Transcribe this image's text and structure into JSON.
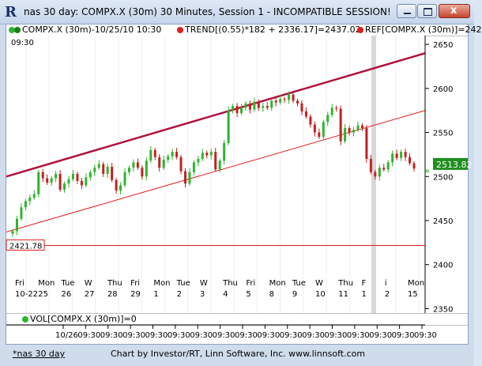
{
  "window": {
    "title": "nas 30 day: COMPX.X (30m) 30 Minutes, Session 1 - INCOMPATIBLE SESSION!",
    "app_icon_glyph": "R",
    "close_glyph": "x"
  },
  "legend": {
    "series": "COMPX.X (30m)-10/25/10 10:30",
    "trend": "TREND[(0.55)*182 + 2336.17]=2437.02",
    "ref": "REF[COMPX.X (30m)]=242",
    "time": "09:30",
    "colors": {
      "series_dot_a": "#2db52d",
      "series_dot_b": "#1a7d1a",
      "trend_dot": "#e11d1d",
      "ref_dot": "#e11d1d"
    }
  },
  "volume_legend": {
    "label": "VOL[COMPX.X (30m)]=0",
    "dot_color": "#2db52d"
  },
  "status": {
    "tab": "*nas 30 day",
    "credit": "Chart by Investor/RT, Linn Software, Inc. www.linnsoft.com"
  },
  "chart_data": {
    "type": "candlestick",
    "y_axis": {
      "ticks": [
        2650,
        2600,
        2550,
        2500,
        2450,
        2400,
        2350
      ],
      "range": [
        2345,
        2660
      ]
    },
    "last_price": "2513.82",
    "reference_line": {
      "label": "2421.78",
      "value": 2421.78
    },
    "day_labels": [
      {
        "dow": "Fri",
        "date": "10-22"
      },
      {
        "dow": "Mon",
        "date": "25"
      },
      {
        "dow": "Tue",
        "date": "26"
      },
      {
        "dow": "W",
        "date": "27"
      },
      {
        "dow": "Thu",
        "date": "28"
      },
      {
        "dow": "Fri",
        "date": "29"
      },
      {
        "dow": "Mon",
        "date": "1"
      },
      {
        "dow": "Tue",
        "date": "2"
      },
      {
        "dow": "W",
        "date": "3"
      },
      {
        "dow": "Thu",
        "date": "4"
      },
      {
        "dow": "Fri",
        "date": "5"
      },
      {
        "dow": "Mon",
        "date": "8"
      },
      {
        "dow": "Tue",
        "date": "9"
      },
      {
        "dow": "W",
        "date": "10"
      },
      {
        "dow": "Thu",
        "date": "11"
      },
      {
        "dow": "F",
        "date": "1"
      },
      {
        "dow": "i",
        "date": "2"
      },
      {
        "dow": "Mon",
        "date": "15"
      }
    ],
    "time_labels": [
      "10/26",
      "09:30",
      "09:30",
      "09:30",
      "09:30",
      "09:30",
      "09:30",
      "09:30",
      "09:30",
      "09:30",
      "09:30",
      "09:30",
      "09:30",
      "09:30",
      "09:30",
      "09:30",
      "09:30"
    ],
    "channel_upper": {
      "start": 2500,
      "end": 2640
    },
    "channel_lower": {
      "start": 2437,
      "end": 2575
    },
    "closes": [
      2438,
      2452,
      2465,
      2472,
      2476,
      2480,
      2505,
      2498,
      2493,
      2498,
      2503,
      2485,
      2492,
      2497,
      2503,
      2495,
      2490,
      2499,
      2505,
      2510,
      2514,
      2503,
      2511,
      2496,
      2484,
      2490,
      2505,
      2510,
      2516,
      2510,
      2500,
      2518,
      2530,
      2522,
      2510,
      2519,
      2523,
      2528,
      2522,
      2506,
      2492,
      2505,
      2516,
      2520,
      2527,
      2524,
      2528,
      2508,
      2518,
      2538,
      2575,
      2580,
      2572,
      2578,
      2583,
      2576,
      2585,
      2578,
      2580,
      2578,
      2586,
      2584,
      2588,
      2587,
      2593,
      2586,
      2583,
      2574,
      2568,
      2559,
      2550,
      2545,
      2562,
      2570,
      2578,
      2577,
      2540,
      2555,
      2550,
      2553,
      2558,
      2555,
      2520,
      2505,
      2500,
      2510,
      2508,
      2516,
      2526,
      2521,
      2528,
      2522,
      2515,
      2509
    ]
  }
}
